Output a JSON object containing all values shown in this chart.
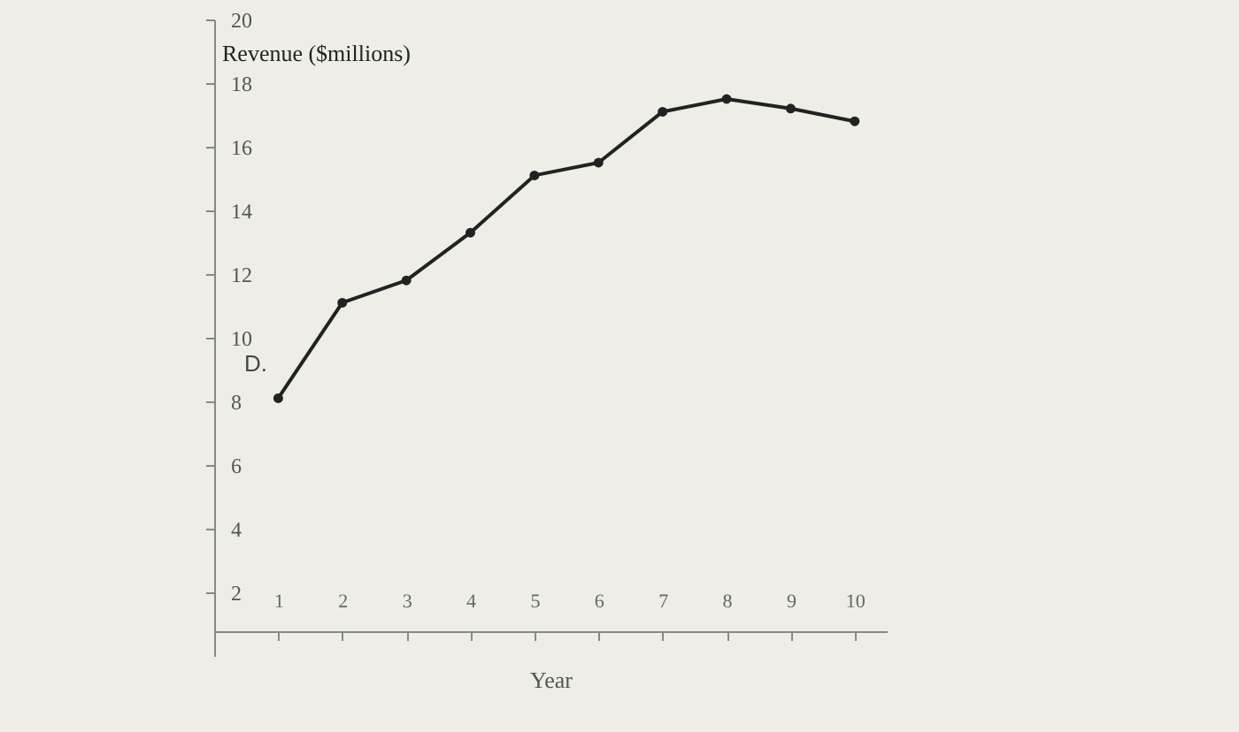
{
  "chart_data": {
    "type": "line",
    "xlabel": "Year",
    "ylabel": "Revenue ($millions)",
    "annotations": [
      "D."
    ],
    "x": [
      1,
      2,
      3,
      4,
      5,
      6,
      7,
      8,
      9,
      10
    ],
    "series": [
      {
        "color": "#222222",
        "values": [
          8.1,
          11.1,
          11.8,
          13.3,
          15.1,
          15.5,
          17.1,
          17.5,
          17.2,
          16.8
        ]
      }
    ],
    "xlim": [
      0,
      10.5
    ],
    "xticks": [
      1,
      2,
      3,
      4,
      5,
      6,
      7,
      8,
      9,
      10
    ],
    "ylim": [
      0,
      20
    ],
    "yticks": [
      2,
      4,
      6,
      8,
      10,
      12,
      14,
      16,
      18,
      20
    ],
    "grid": false,
    "marker": "circle",
    "line_style": "solid"
  }
}
